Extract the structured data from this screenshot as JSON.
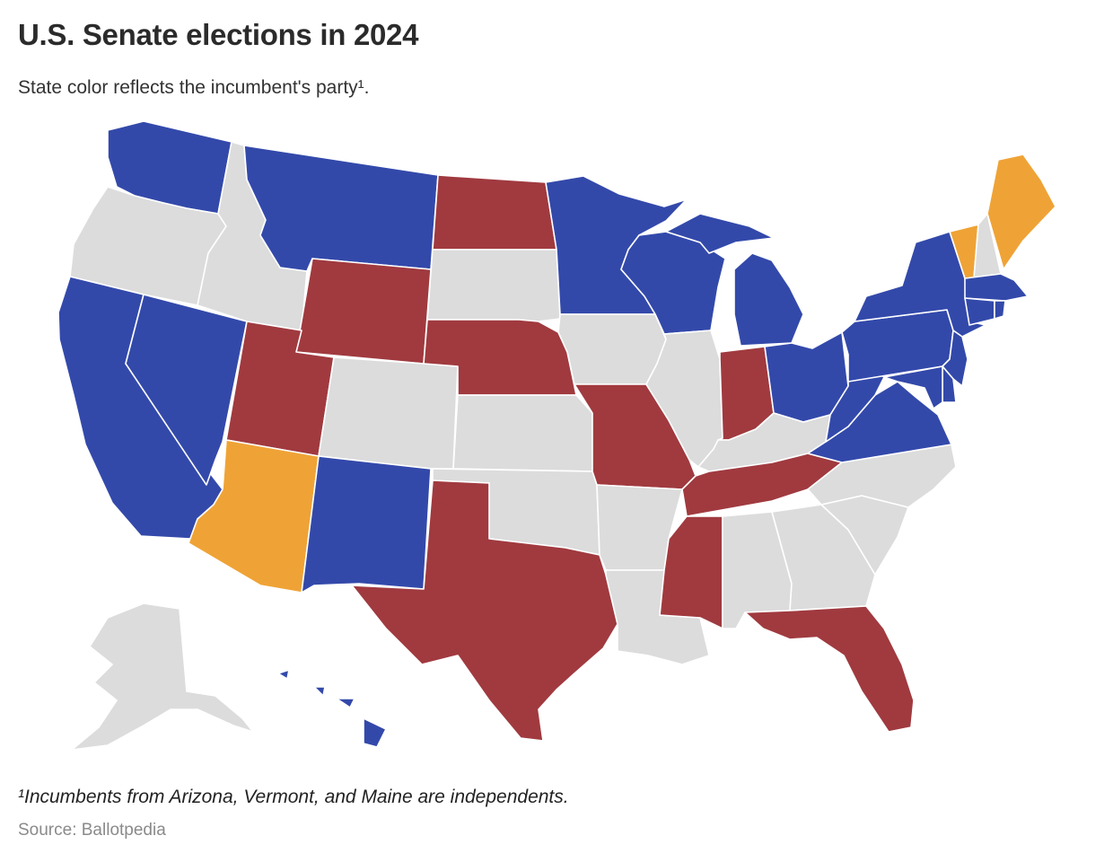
{
  "title": "U.S. Senate elections in 2024",
  "subtitle": "State color reflects the incumbent's party¹.",
  "footnote": "¹Incumbents from Arizona, Vermont, and Maine are independents.",
  "source": "Source: Ballotpedia",
  "colors": {
    "democrat": "#3349aa",
    "republican": "#a03a3f",
    "independent": "#efa336",
    "none": "#dcdcdc"
  },
  "states": [
    {
      "id": "WA",
      "status": "democrat"
    },
    {
      "id": "OR",
      "status": "none"
    },
    {
      "id": "CA",
      "status": "democrat"
    },
    {
      "id": "ID",
      "status": "none"
    },
    {
      "id": "NV",
      "status": "democrat"
    },
    {
      "id": "MT",
      "status": "democrat"
    },
    {
      "id": "WY",
      "status": "republican"
    },
    {
      "id": "UT",
      "status": "republican"
    },
    {
      "id": "AZ",
      "status": "independent"
    },
    {
      "id": "CO",
      "status": "none"
    },
    {
      "id": "NM",
      "status": "democrat"
    },
    {
      "id": "ND",
      "status": "republican"
    },
    {
      "id": "SD",
      "status": "none"
    },
    {
      "id": "NE",
      "status": "republican"
    },
    {
      "id": "KS",
      "status": "none"
    },
    {
      "id": "OK",
      "status": "none"
    },
    {
      "id": "TX",
      "status": "republican"
    },
    {
      "id": "MN",
      "status": "democrat"
    },
    {
      "id": "IA",
      "status": "none"
    },
    {
      "id": "MO",
      "status": "republican"
    },
    {
      "id": "AR",
      "status": "none"
    },
    {
      "id": "LA",
      "status": "none"
    },
    {
      "id": "WI",
      "status": "democrat"
    },
    {
      "id": "IL",
      "status": "none"
    },
    {
      "id": "MI",
      "status": "democrat"
    },
    {
      "id": "IN",
      "status": "republican"
    },
    {
      "id": "OH",
      "status": "democrat"
    },
    {
      "id": "KY",
      "status": "none"
    },
    {
      "id": "TN",
      "status": "republican"
    },
    {
      "id": "MS",
      "status": "republican"
    },
    {
      "id": "AL",
      "status": "none"
    },
    {
      "id": "GA",
      "status": "none"
    },
    {
      "id": "FL",
      "status": "republican"
    },
    {
      "id": "SC",
      "status": "none"
    },
    {
      "id": "NC",
      "status": "none"
    },
    {
      "id": "VA",
      "status": "democrat"
    },
    {
      "id": "WV",
      "status": "democrat"
    },
    {
      "id": "PA",
      "status": "democrat"
    },
    {
      "id": "NY",
      "status": "democrat"
    },
    {
      "id": "VT",
      "status": "independent"
    },
    {
      "id": "NH",
      "status": "none"
    },
    {
      "id": "ME",
      "status": "independent"
    },
    {
      "id": "MA",
      "status": "democrat"
    },
    {
      "id": "CT",
      "status": "democrat"
    },
    {
      "id": "RI",
      "status": "democrat"
    },
    {
      "id": "NJ",
      "status": "democrat"
    },
    {
      "id": "DE",
      "status": "democrat"
    },
    {
      "id": "MD",
      "status": "democrat"
    },
    {
      "id": "AK",
      "status": "none"
    },
    {
      "id": "HI",
      "status": "democrat"
    }
  ]
}
